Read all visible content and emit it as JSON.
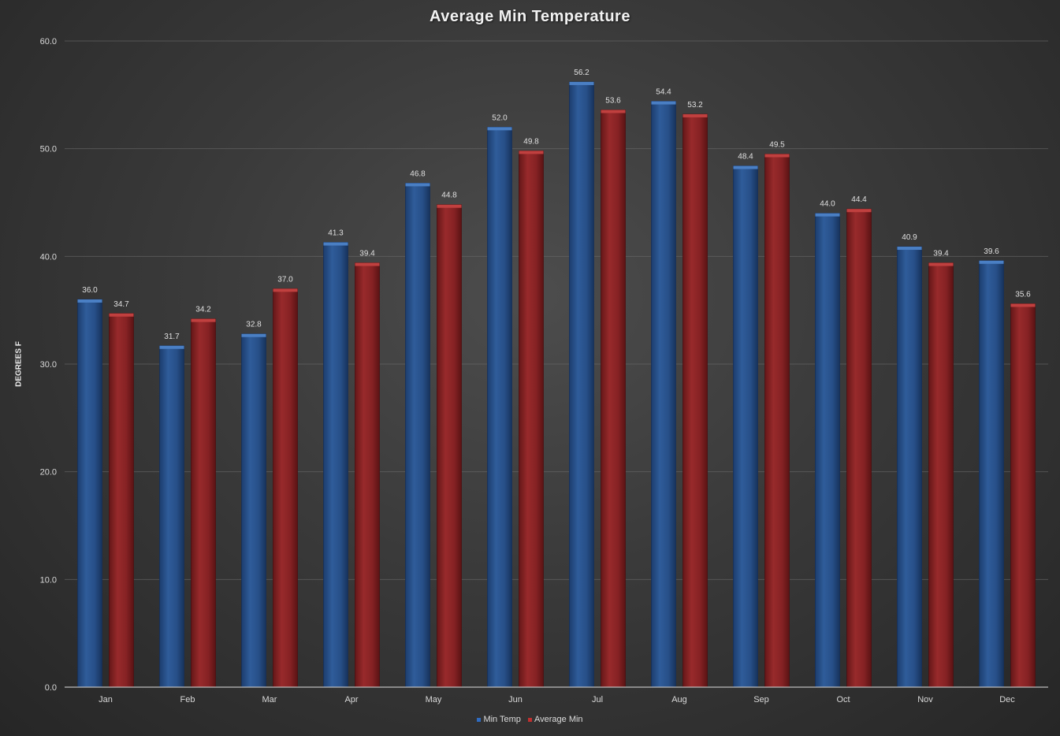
{
  "chart_data": {
    "type": "bar",
    "title": "Average Min Temperature",
    "ylabel": "DEGREES F",
    "xlabel": "",
    "ylim": [
      0,
      60
    ],
    "yticks": [
      "0.0",
      "10.0",
      "20.0",
      "30.0",
      "40.0",
      "50.0",
      "60.0"
    ],
    "grid": true,
    "legend_position": "bottom",
    "categories": [
      "Jan",
      "Feb",
      "Mar",
      "Apr",
      "May",
      "Jun",
      "Jul",
      "Aug",
      "Sep",
      "Oct",
      "Nov",
      "Dec"
    ],
    "series": [
      {
        "name": "Min Temp",
        "color": "#2b5797",
        "values": [
          36.0,
          31.7,
          32.8,
          41.3,
          46.8,
          52.0,
          56.2,
          54.4,
          48.4,
          44.0,
          40.9,
          39.6
        ],
        "labels": [
          "36.0",
          "31.7",
          "32.8",
          "41.3",
          "46.8",
          "52.0",
          "56.2",
          "54.4",
          "48.4",
          "44.0",
          "40.9",
          "39.6"
        ]
      },
      {
        "name": "Average Min",
        "color": "#8e2426",
        "values": [
          34.7,
          34.2,
          37.0,
          39.4,
          44.8,
          49.8,
          53.6,
          53.2,
          49.5,
          44.4,
          39.4,
          35.6
        ],
        "labels": [
          "34.7",
          "34.2",
          "37.0",
          "39.4",
          "44.8",
          "49.8",
          "53.6",
          "53.2",
          "49.5",
          "44.4",
          "39.4",
          "35.6"
        ]
      }
    ]
  }
}
